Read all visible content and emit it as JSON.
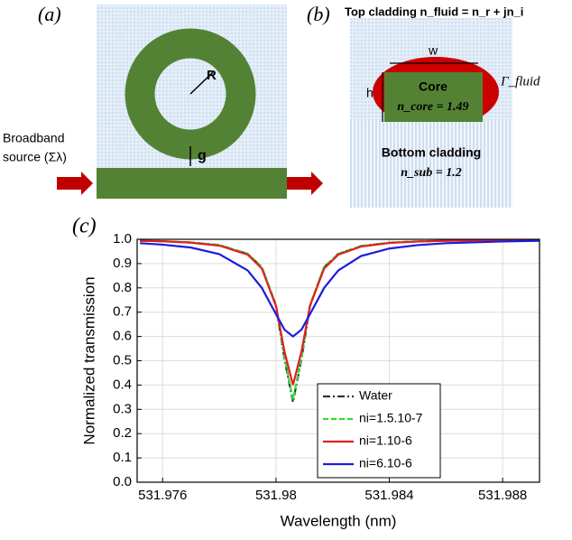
{
  "panels": {
    "a": {
      "label": "(a)",
      "radius": "R",
      "gap": "g",
      "source": [
        "Broadband",
        "source (Σλ)"
      ]
    },
    "b": {
      "label": "(b)",
      "top": "Top cladding n_fluid = n_r + jn_i",
      "width": "w",
      "height": "h",
      "core": "Core",
      "n_core": "n_core = 1.49",
      "gamma": "Γ_fluid",
      "bottom": "Bottom cladding",
      "n_sub": "n_sub = 1.2"
    },
    "c": {
      "label": "(c)"
    }
  },
  "chart_data": {
    "type": "line",
    "x_label": "Wavelength (nm)",
    "y_label": "Normalized transmission",
    "x": [
      531.9752,
      531.976,
      531.977,
      531.978,
      531.979,
      531.9795,
      531.98,
      531.9803,
      531.9806,
      531.9809,
      531.9812,
      531.9817,
      531.9822,
      531.983,
      531.984,
      531.985,
      531.986,
      531.988,
      531.9893
    ],
    "series": [
      {
        "name": "Water",
        "color": "#333333",
        "dash": "8,3,2,3",
        "values": [
          0.994,
          0.992,
          0.987,
          0.976,
          0.94,
          0.885,
          0.725,
          0.507,
          0.33,
          0.507,
          0.725,
          0.885,
          0.94,
          0.972,
          0.986,
          0.991,
          0.994,
          0.997,
          0.998
        ]
      },
      {
        "name": "ni=1.5.10-7",
        "color": "#33dd33",
        "dash": "6,3",
        "values": [
          0.994,
          0.992,
          0.987,
          0.977,
          0.941,
          0.887,
          0.73,
          0.515,
          0.34,
          0.515,
          0.73,
          0.887,
          0.941,
          0.972,
          0.986,
          0.992,
          0.994,
          0.997,
          0.998
        ]
      },
      {
        "name": "ni=1.10-6",
        "color": "#e02020",
        "dash": "none",
        "values": [
          0.994,
          0.992,
          0.986,
          0.974,
          0.937,
          0.88,
          0.726,
          0.538,
          0.4,
          0.538,
          0.726,
          0.88,
          0.937,
          0.97,
          0.985,
          0.991,
          0.994,
          0.997,
          0.998
        ]
      },
      {
        "name": "ni=6.10-6",
        "color": "#1c1ce0",
        "dash": "none",
        "values": [
          0.984,
          0.978,
          0.966,
          0.939,
          0.872,
          0.8,
          0.692,
          0.628,
          0.6,
          0.628,
          0.692,
          0.8,
          0.872,
          0.931,
          0.962,
          0.976,
          0.984,
          0.991,
          0.994
        ]
      }
    ],
    "xlim": [
      531.9751,
      531.9893
    ],
    "xticks": [
      531.976,
      531.98,
      531.984,
      531.988
    ],
    "ylim": [
      0,
      1
    ],
    "yticks": [
      {
        "value": 0,
        "label": "0.0"
      },
      0.1,
      0.2,
      0.3,
      0.4,
      0.5,
      0.6,
      0.7,
      0.8,
      0.9,
      {
        "value": 1,
        "label": "1.0"
      }
    ],
    "grid": true
  }
}
